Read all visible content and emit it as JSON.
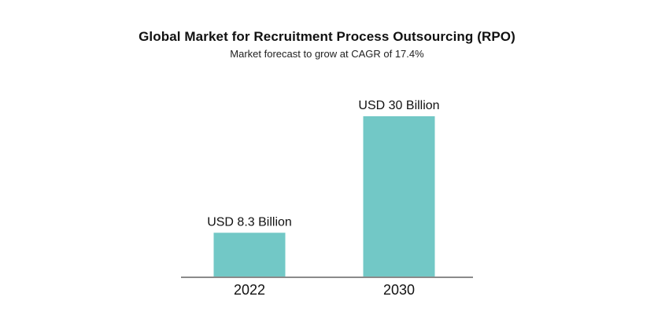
{
  "chart_data": {
    "type": "bar",
    "title": "Global Market for Recruitment Process Outsourcing (RPO)",
    "subtitle": "Market forecast to grow at CAGR of 17.4%",
    "categories": [
      "2022",
      "2030"
    ],
    "values": [
      8.3,
      30
    ],
    "data_labels": [
      "USD 8.3 Billion",
      "USD 30 Billion"
    ],
    "unit": "USD Billion",
    "xlabel": "",
    "ylabel": "",
    "ylim": [
      0,
      30
    ],
    "grid": false,
    "legend": "none",
    "bar_color": "#72c8c6",
    "axis_color": "#8a8a8a"
  }
}
